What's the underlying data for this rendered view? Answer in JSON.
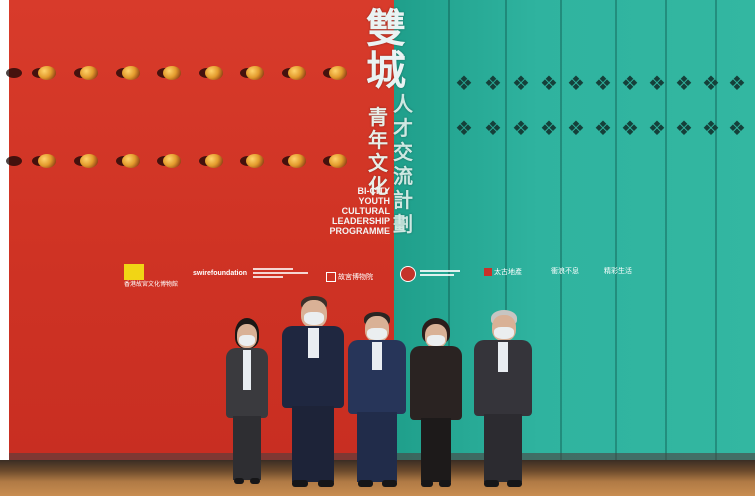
{
  "image": {
    "title_chinese": "雙城青年文化人才交流計劃",
    "title_english_lines": [
      "BI-CITY",
      "YOUTH",
      "CULTURAL",
      "LEADERSHIP",
      "PROGRAMME"
    ],
    "logos": [
      {
        "id": "hk-palace-museum",
        "text": "香港故宮文化博物館"
      },
      {
        "id": "swire",
        "text": "swirefoundation"
      },
      {
        "id": "palace-museum",
        "text": "故宮博物院"
      },
      {
        "id": "hksar",
        "text": ""
      },
      {
        "id": "swire-properties",
        "text": "太古地產"
      },
      {
        "id": "sponsor-2",
        "text": "衝浪不息"
      },
      {
        "id": "sponsor-3",
        "text": "精彩生活"
      }
    ],
    "people_count": 5,
    "colors": {
      "red_wall": "#cf3324",
      "green_wall": "#2fb39f",
      "floor": "#b07a45"
    }
  }
}
